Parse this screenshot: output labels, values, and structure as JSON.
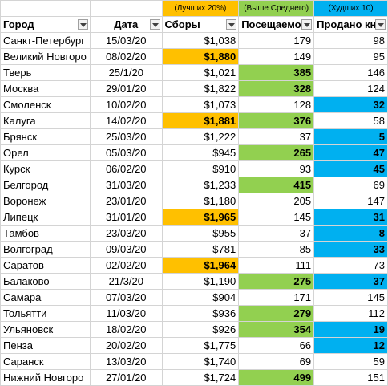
{
  "labels": {
    "top": "(Лучших 20%)",
    "above": "(Выше Среднего)",
    "bottom": "(Худших 10)"
  },
  "headers": {
    "city": "Город",
    "date": "Дата",
    "fees": "Сборы",
    "visits": "Посещаемо",
    "sold": "Продано кн"
  },
  "rows": [
    {
      "city": "Санкт-Петербург",
      "date": "15/03/20",
      "fees": "$1,038",
      "visits": "179",
      "sold": "98"
    },
    {
      "city": "Великий Новгоро",
      "date": "08/02/20",
      "fees": "$1,880",
      "visits": "149",
      "sold": "95"
    },
    {
      "city": "Тверь",
      "date": "25/1/20",
      "fees": "$1,021",
      "visits": "385",
      "sold": "146"
    },
    {
      "city": "Москва",
      "date": "29/01/20",
      "fees": "$1,822",
      "visits": "328",
      "sold": "124"
    },
    {
      "city": "Смоленск",
      "date": "10/02/20",
      "fees": "$1,073",
      "visits": "128",
      "sold": "32"
    },
    {
      "city": "Калуга",
      "date": "14/02/20",
      "fees": "$1,881",
      "visits": "376",
      "sold": "58"
    },
    {
      "city": "Брянск",
      "date": "25/03/20",
      "fees": "$1,222",
      "visits": "37",
      "sold": "5"
    },
    {
      "city": "Орел",
      "date": "05/03/20",
      "fees": "$945",
      "visits": "265",
      "sold": "47"
    },
    {
      "city": "Курск",
      "date": "06/02/20",
      "fees": "$910",
      "visits": "93",
      "sold": "45"
    },
    {
      "city": "Белгород",
      "date": "31/03/20",
      "fees": "$1,233",
      "visits": "415",
      "sold": "69"
    },
    {
      "city": "Воронеж",
      "date": "23/01/20",
      "fees": "$1,180",
      "visits": "205",
      "sold": "147"
    },
    {
      "city": "Липецк",
      "date": "31/01/20",
      "fees": "$1,965",
      "visits": "145",
      "sold": "31"
    },
    {
      "city": "Тамбов",
      "date": "23/03/20",
      "fees": "$955",
      "visits": "37",
      "sold": "8"
    },
    {
      "city": "Волгоград",
      "date": "09/03/20",
      "fees": "$781",
      "visits": "85",
      "sold": "33"
    },
    {
      "city": "Саратов",
      "date": "02/02/20",
      "fees": "$1,964",
      "visits": "111",
      "sold": "73"
    },
    {
      "city": "Балаково",
      "date": "21/3/20",
      "fees": "$1,190",
      "visits": "275",
      "sold": "37"
    },
    {
      "city": "Самара",
      "date": "07/03/20",
      "fees": "$904",
      "visits": "171",
      "sold": "145"
    },
    {
      "city": "Тольятти",
      "date": "11/03/20",
      "fees": "$936",
      "visits": "279",
      "sold": "112"
    },
    {
      "city": "Ульяновск",
      "date": "18/02/20",
      "fees": "$926",
      "visits": "354",
      "sold": "19"
    },
    {
      "city": "Пенза",
      "date": "20/02/20",
      "fees": "$1,775",
      "visits": "66",
      "sold": "12"
    },
    {
      "city": "Саранск",
      "date": "13/03/20",
      "fees": "$1,740",
      "visits": "69",
      "sold": "59"
    },
    {
      "city": "Нижний Новгоро",
      "date": "27/01/20",
      "fees": "$1,724",
      "visits": "499",
      "sold": "151"
    }
  ],
  "highlights": {
    "fees_top": [
      1,
      5,
      11,
      14
    ],
    "visits_above": [
      2,
      3,
      5,
      7,
      9,
      15,
      17,
      18,
      21
    ],
    "sold_bottom": [
      4,
      6,
      7,
      8,
      11,
      12,
      13,
      15,
      18,
      19
    ]
  },
  "colors": {
    "top": "#ffc000",
    "above": "#92d050",
    "bottom": "#00b0f0",
    "grid": "#d4d4d4"
  },
  "icons": {
    "city_filter": "sort-filter-icon",
    "other_filters": "dropdown-filter-icon"
  }
}
